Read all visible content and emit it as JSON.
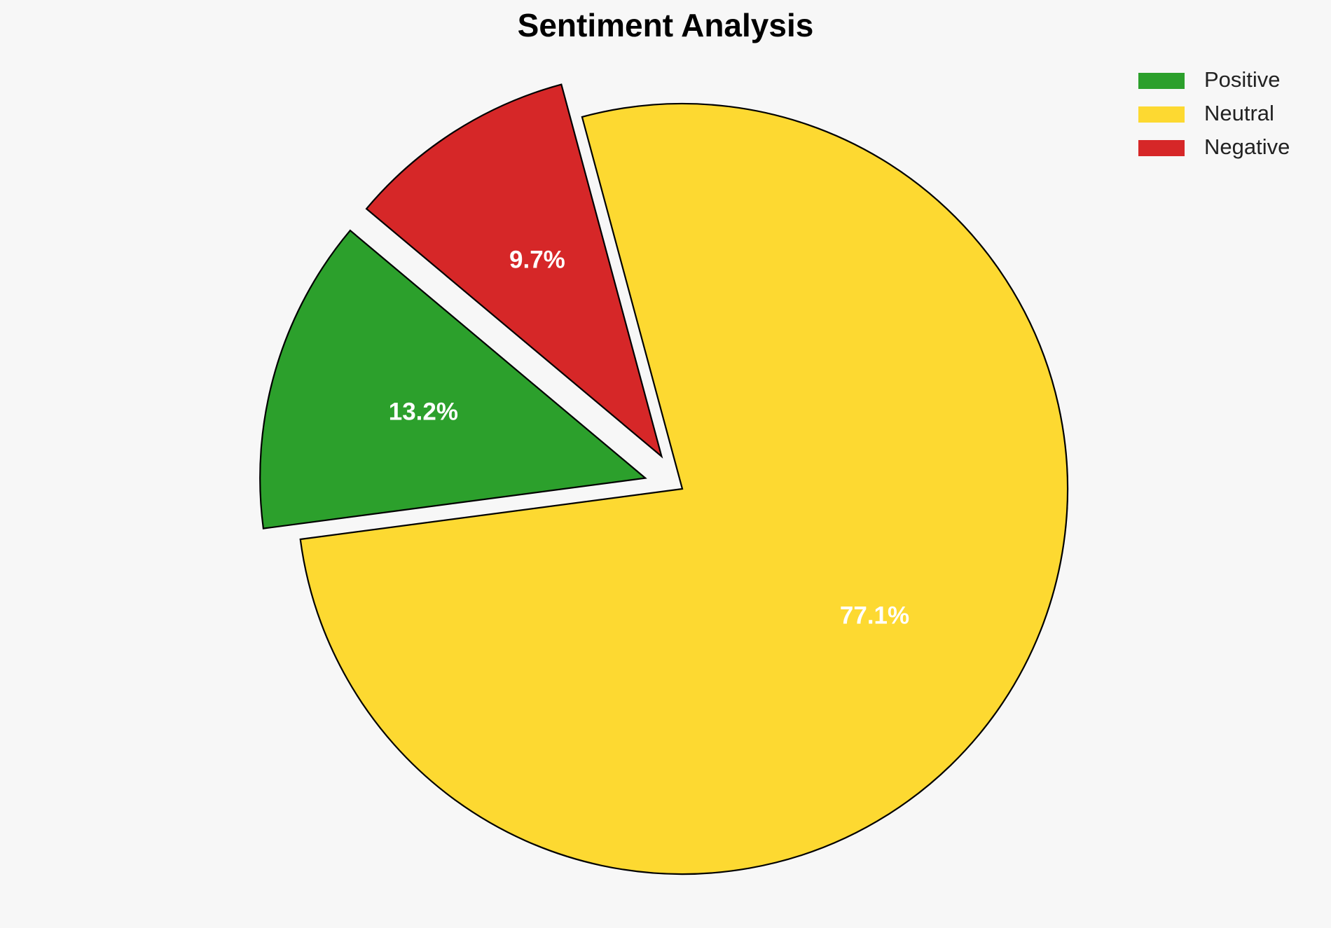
{
  "chart_data": {
    "type": "pie",
    "title": "Sentiment Analysis",
    "categories": [
      "Positive",
      "Neutral",
      "Negative"
    ],
    "values": [
      13.2,
      77.1,
      9.7
    ],
    "value_labels": [
      "13.2%",
      "77.1%",
      "9.7%"
    ],
    "colors": [
      "#2ca02c",
      "#fdd931",
      "#d62728"
    ],
    "explode": [
      0.1,
      0,
      0.1
    ],
    "startangle": 140,
    "legend": "upper right"
  }
}
